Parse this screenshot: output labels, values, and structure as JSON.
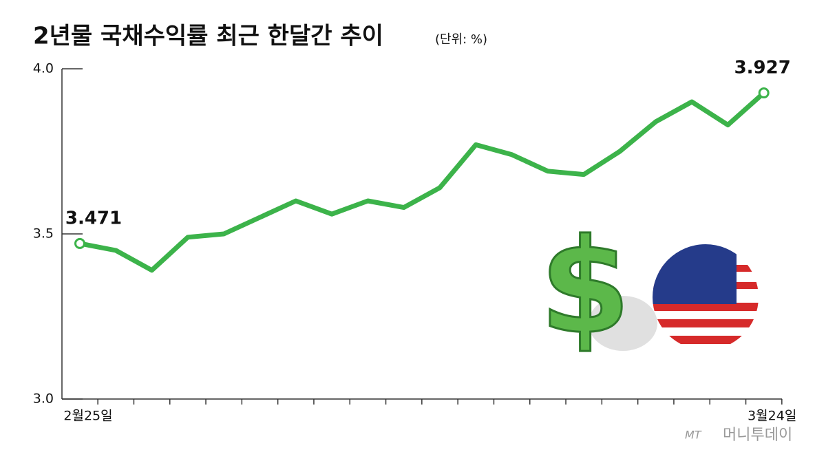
{
  "chart_data": {
    "type": "line",
    "title": "2년물 국채수익률 최근 한달간 추이",
    "subtitle": "(단위: %)",
    "categories": [
      "2월25일",
      null,
      null,
      null,
      null,
      null,
      null,
      null,
      null,
      null,
      null,
      null,
      null,
      null,
      null,
      null,
      null,
      null,
      null,
      "3월24일"
    ],
    "series": [
      {
        "name": "2년물 국채수익률",
        "color": "#3cb34a",
        "values": [
          3.471,
          3.45,
          3.39,
          3.49,
          3.5,
          3.55,
          3.6,
          3.56,
          3.6,
          3.58,
          3.64,
          3.77,
          3.74,
          3.69,
          3.68,
          3.75,
          3.84,
          3.9,
          3.83,
          3.927
        ]
      }
    ],
    "ylim": [
      3,
      4
    ],
    "yticks": [
      {
        "value": 3,
        "label": "3.0"
      },
      3.5,
      {
        "value": 4,
        "label": "4.0"
      }
    ],
    "source_logo": "MT",
    "source": "머니투데이"
  }
}
